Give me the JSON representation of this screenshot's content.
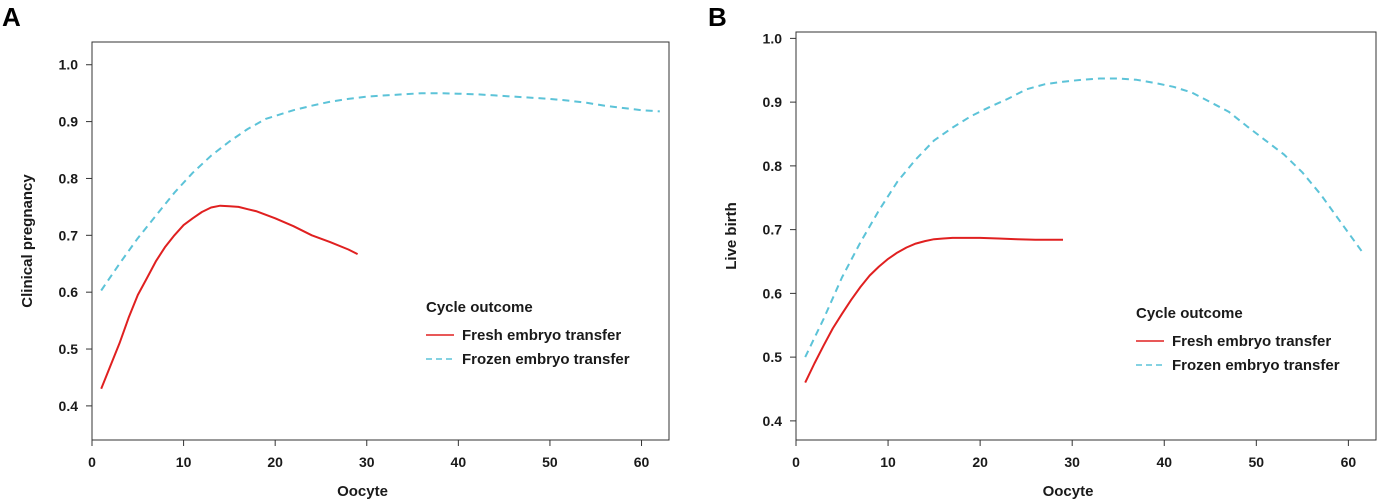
{
  "chart_data": [
    {
      "panel": "A",
      "type": "line",
      "title": "",
      "xlabel": "Oocyte",
      "ylabel": "Clinical pregnancy",
      "xlim": [
        0,
        63
      ],
      "ylim": [
        0.34,
        1.04
      ],
      "xticks": [
        0,
        10,
        20,
        30,
        40,
        50,
        60
      ],
      "yticks": [
        0.4,
        0.5,
        0.6,
        0.7,
        0.8,
        0.9,
        1.0
      ],
      "ytick_labels": [
        "0.4",
        "0.5",
        "0.6",
        "0.7",
        "0.8",
        "0.9",
        "1.0"
      ],
      "legend": {
        "title": "Cycle outcome",
        "position": "right",
        "entries": [
          "Fresh embryo transfer",
          "Frozen embryo transfer"
        ]
      },
      "series": [
        {
          "name": "Fresh embryo transfer",
          "color": "#e02020",
          "style": "solid",
          "x": [
            1,
            2,
            3,
            4,
            5,
            6,
            7,
            8,
            9,
            10,
            11,
            12,
            13,
            14,
            15,
            16,
            17,
            18,
            20,
            22,
            24,
            26,
            28,
            29
          ],
          "y": [
            0.43,
            0.47,
            0.51,
            0.555,
            0.595,
            0.625,
            0.655,
            0.68,
            0.7,
            0.718,
            0.73,
            0.741,
            0.749,
            0.752,
            0.751,
            0.75,
            0.746,
            0.742,
            0.73,
            0.716,
            0.7,
            0.688,
            0.675,
            0.667
          ]
        },
        {
          "name": "Frozen embryo transfer",
          "color": "#5cc3d8",
          "style": "dashed",
          "x": [
            1,
            3,
            5,
            7,
            9,
            11,
            13,
            15,
            17,
            19,
            20,
            22,
            24,
            26,
            28,
            30,
            32,
            34,
            36,
            38,
            40,
            42,
            44,
            46,
            48,
            50,
            52,
            54,
            56,
            58,
            60,
            62
          ],
          "y": [
            0.603,
            0.65,
            0.695,
            0.735,
            0.775,
            0.81,
            0.84,
            0.865,
            0.887,
            0.905,
            0.91,
            0.92,
            0.928,
            0.935,
            0.94,
            0.944,
            0.946,
            0.948,
            0.95,
            0.95,
            0.949,
            0.948,
            0.946,
            0.944,
            0.942,
            0.94,
            0.937,
            0.933,
            0.928,
            0.924,
            0.92,
            0.918
          ]
        }
      ]
    },
    {
      "panel": "B",
      "type": "line",
      "title": "",
      "xlabel": "Oocyte",
      "ylabel": "Live birth",
      "xlim": [
        0,
        63
      ],
      "ylim": [
        0.37,
        1.01
      ],
      "xticks": [
        0,
        10,
        20,
        30,
        40,
        50,
        60
      ],
      "yticks": [
        0.4,
        0.5,
        0.6,
        0.7,
        0.8,
        0.9,
        1.0
      ],
      "ytick_labels": [
        "0.4",
        "0.5",
        "0.6",
        "0.7",
        "0.8",
        "0.9",
        "1.0"
      ],
      "legend": {
        "title": "Cycle outcome",
        "position": "right",
        "entries": [
          "Fresh embryo transfer",
          "Frozen embryo transfer"
        ]
      },
      "series": [
        {
          "name": "Fresh embryo transfer",
          "color": "#e02020",
          "style": "solid",
          "x": [
            1,
            2,
            3,
            4,
            5,
            6,
            7,
            8,
            9,
            10,
            11,
            12,
            13,
            14,
            15,
            16,
            17,
            18,
            19,
            20,
            22,
            24,
            26,
            28,
            29
          ],
          "y": [
            0.46,
            0.49,
            0.518,
            0.545,
            0.568,
            0.59,
            0.61,
            0.628,
            0.642,
            0.654,
            0.664,
            0.672,
            0.678,
            0.682,
            0.685,
            0.686,
            0.687,
            0.687,
            0.687,
            0.687,
            0.686,
            0.685,
            0.684,
            0.684,
            0.684
          ]
        },
        {
          "name": "Frozen embryo transfer",
          "color": "#5cc3d8",
          "style": "dashed",
          "x": [
            1,
            3,
            5,
            7,
            9,
            11,
            13,
            15,
            17,
            19,
            21,
            23,
            25,
            27,
            29,
            31,
            33,
            35,
            37,
            39,
            41,
            43,
            45,
            47,
            49,
            51,
            53,
            55,
            57,
            59,
            61.5
          ],
          "y": [
            0.5,
            0.56,
            0.625,
            0.68,
            0.73,
            0.775,
            0.81,
            0.84,
            0.86,
            0.878,
            0.892,
            0.905,
            0.92,
            0.928,
            0.932,
            0.935,
            0.937,
            0.937,
            0.935,
            0.93,
            0.924,
            0.915,
            0.9,
            0.885,
            0.862,
            0.84,
            0.818,
            0.79,
            0.755,
            0.715,
            0.665
          ]
        }
      ]
    }
  ]
}
